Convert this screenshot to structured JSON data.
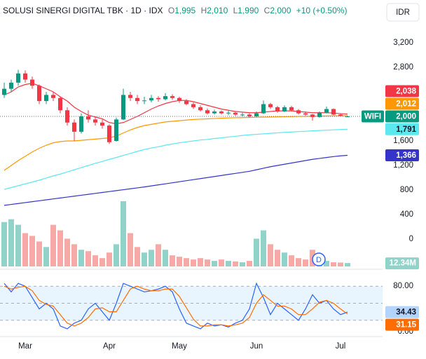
{
  "chart_data": [
    {
      "type": "candlestick",
      "title": "SOLUSI SINERGI DIGITAL TBK · 1D · IDX",
      "legend": {
        "open_key": "O",
        "open": "1,995",
        "high_key": "H",
        "high": "2,010",
        "low_key": "L",
        "low": "1,990",
        "close_key": "C",
        "close": "2,000",
        "change": "+10 (+0.50%)"
      },
      "currency": "IDR",
      "symbol": "WIFI",
      "last_label": "2,000",
      "up_color": "#089981",
      "down_color": "#f23645",
      "categories": [
        null,
        null,
        null,
        "Mar",
        null,
        null,
        null,
        null,
        null,
        null,
        null,
        null,
        null,
        null,
        null,
        "Apr",
        null,
        null,
        null,
        null,
        null,
        null,
        null,
        null,
        null,
        "May",
        null,
        null,
        null,
        null,
        null,
        null,
        null,
        null,
        null,
        null,
        "Jun",
        null,
        null,
        null,
        null,
        null,
        null,
        null,
        null,
        null,
        null,
        null,
        "Jul",
        null
      ],
      "ohlc": [
        [
          2350,
          2550,
          2300,
          2450
        ],
        [
          2450,
          2600,
          2400,
          2550
        ],
        [
          2550,
          2760,
          2500,
          2700
        ],
        [
          2700,
          2750,
          2550,
          2600
        ],
        [
          2600,
          2650,
          2450,
          2500
        ],
        [
          2500,
          2520,
          2200,
          2250
        ],
        [
          2250,
          2400,
          2200,
          2350
        ],
        [
          2350,
          2400,
          2250,
          2300
        ],
        [
          2300,
          2320,
          2050,
          2100
        ],
        [
          2100,
          2150,
          1850,
          1900
        ],
        [
          1900,
          1950,
          1600,
          1750
        ],
        [
          1750,
          2050,
          1720,
          2000
        ],
        [
          2000,
          2100,
          1900,
          1950
        ],
        [
          1950,
          2000,
          1850,
          1900
        ],
        [
          1900,
          1950,
          1800,
          1850
        ],
        [
          1850,
          1870,
          1550,
          1580
        ],
        [
          1600,
          1980,
          1590,
          1950
        ],
        [
          1950,
          2450,
          1940,
          2350
        ],
        [
          2350,
          2400,
          2250,
          2300
        ],
        [
          2300,
          2350,
          2200,
          2250
        ],
        [
          2250,
          2320,
          2200,
          2260
        ],
        [
          2260,
          2350,
          2230,
          2300
        ],
        [
          2300,
          2330,
          2240,
          2280
        ],
        [
          2280,
          2380,
          2260,
          2330
        ],
        [
          2330,
          2360,
          2270,
          2300
        ],
        [
          2300,
          2320,
          2220,
          2250
        ],
        [
          2250,
          2280,
          2180,
          2200
        ],
        [
          2200,
          2230,
          2120,
          2150
        ],
        [
          2150,
          2180,
          2080,
          2100
        ],
        [
          2100,
          2130,
          2030,
          2050
        ],
        [
          2050,
          2110,
          2030,
          2080
        ],
        [
          2080,
          2100,
          2030,
          2050
        ],
        [
          2050,
          2090,
          2020,
          2060
        ],
        [
          2060,
          2080,
          2010,
          2030
        ],
        [
          2030,
          2060,
          2000,
          2030
        ],
        [
          2030,
          2050,
          1980,
          2000
        ],
        [
          2000,
          2080,
          1990,
          2050
        ],
        [
          2050,
          2260,
          2040,
          2200
        ],
        [
          2200,
          2220,
          2120,
          2150
        ],
        [
          2150,
          2170,
          2060,
          2080
        ],
        [
          2080,
          2180,
          2070,
          2150
        ],
        [
          2150,
          2170,
          2080,
          2100
        ],
        [
          2100,
          2120,
          2030,
          2050
        ],
        [
          2050,
          2080,
          2010,
          2030
        ],
        [
          2030,
          2040,
          1930,
          1990
        ],
        [
          1990,
          2080,
          1980,
          2060
        ],
        [
          2060,
          2160,
          2050,
          2120
        ],
        [
          2120,
          2130,
          2020,
          2030
        ],
        [
          2030,
          2050,
          2000,
          2010
        ],
        [
          1995,
          2010,
          1990,
          2000
        ]
      ],
      "series": [
        {
          "color": "#f23645",
          "value_label": "2,038",
          "values": [
            2350,
            2400,
            2480,
            2520,
            2540,
            2500,
            2450,
            2400,
            2320,
            2250,
            2150,
            2080,
            2020,
            1990,
            1960,
            1900,
            1880,
            1900,
            1950,
            2000,
            2060,
            2120,
            2170,
            2210,
            2240,
            2260,
            2260,
            2240,
            2210,
            2180,
            2150,
            2120,
            2100,
            2080,
            2070,
            2060,
            2060,
            2070,
            2080,
            2090,
            2090,
            2090,
            2080,
            2070,
            2060,
            2060,
            2060,
            2055,
            2045,
            2038
          ]
        },
        {
          "color": "#ff9800",
          "value_label": "2,012",
          "values": [
            1120,
            1200,
            1280,
            1350,
            1420,
            1480,
            1530,
            1570,
            1590,
            1600,
            1600,
            1610,
            1620,
            1630,
            1640,
            1650,
            1680,
            1730,
            1780,
            1820,
            1850,
            1870,
            1890,
            1910,
            1920,
            1930,
            1940,
            1950,
            1955,
            1960,
            1965,
            1970,
            1975,
            1978,
            1980,
            1982,
            1985,
            1988,
            1990,
            1992,
            1995,
            1997,
            1999,
            2001,
            2003,
            2005,
            2007,
            2009,
            2011,
            2012
          ]
        },
        {
          "color": "#5ce8ef",
          "value_label": "1,791",
          "values": [
            810,
            840,
            870,
            900,
            930,
            960,
            995,
            1030,
            1060,
            1095,
            1130,
            1165,
            1200,
            1235,
            1265,
            1300,
            1330,
            1365,
            1395,
            1430,
            1460,
            1485,
            1505,
            1530,
            1550,
            1570,
            1585,
            1600,
            1615,
            1625,
            1640,
            1650,
            1665,
            1675,
            1690,
            1700,
            1708,
            1716,
            1724,
            1732,
            1740,
            1746,
            1752,
            1758,
            1764,
            1770,
            1775,
            1781,
            1786,
            1791
          ]
        },
        {
          "color": "#3434c8",
          "value_label": "1,366",
          "values": [
            550,
            565,
            580,
            595,
            610,
            625,
            640,
            655,
            670,
            685,
            700,
            715,
            730,
            745,
            760,
            775,
            790,
            805,
            820,
            835,
            850,
            867,
            884,
            901,
            918,
            935,
            952,
            969,
            986,
            1003,
            1020,
            1037,
            1054,
            1071,
            1088,
            1105,
            1130,
            1155,
            1180,
            1200,
            1220,
            1240,
            1260,
            1280,
            1300,
            1315,
            1330,
            1345,
            1357,
            1366
          ]
        }
      ],
      "ylim": [
        0,
        3200
      ],
      "yticks": [
        {
          "value": 3200,
          "label": "3,200"
        },
        {
          "value": 2800,
          "label": "2,800"
        },
        {
          "value": 1600,
          "label": "1,600"
        },
        {
          "value": 1200,
          "label": "1,200"
        },
        800,
        400,
        0
      ]
    },
    {
      "type": "bar",
      "event_label": "D",
      "last_label": "12.34M",
      "up_color": "#92d3c9",
      "down_color": "#f7a9a7",
      "values": [
        160,
        170,
        150,
        120,
        110,
        90,
        70,
        150,
        130,
        100,
        80,
        60,
        55,
        40,
        30,
        50,
        80,
        235,
        120,
        70,
        50,
        60,
        80,
        60,
        40,
        35,
        30,
        25,
        30,
        25,
        20,
        25,
        20,
        18,
        15,
        20,
        100,
        130,
        80,
        60,
        50,
        40,
        30,
        25,
        60,
        25,
        20,
        15,
        14,
        12.34
      ],
      "ylim": [
        0,
        240
      ]
    },
    {
      "type": "line",
      "series": [
        {
          "color": "#2962ff",
          "value_label": "34.43",
          "values": [
            85,
            70,
            85,
            80,
            60,
            40,
            50,
            40,
            10,
            5,
            15,
            20,
            40,
            50,
            35,
            20,
            50,
            85,
            80,
            75,
            70,
            72,
            75,
            80,
            70,
            40,
            15,
            10,
            5,
            15,
            10,
            12,
            8,
            15,
            20,
            40,
            85,
            60,
            30,
            50,
            40,
            30,
            20,
            40,
            65,
            50,
            55,
            40,
            30,
            34.43
          ]
        },
        {
          "color": "#ff6d00",
          "value_label": "31.15",
          "values": [
            80,
            75,
            78,
            80,
            72,
            55,
            48,
            45,
            30,
            15,
            10,
            15,
            25,
            40,
            42,
            35,
            35,
            55,
            75,
            80,
            75,
            72,
            72,
            75,
            75,
            62,
            42,
            22,
            10,
            10,
            12,
            12,
            10,
            12,
            15,
            25,
            50,
            65,
            55,
            45,
            45,
            40,
            30,
            30,
            40,
            52,
            55,
            50,
            40,
            31.15
          ]
        }
      ],
      "bands": [
        20,
        50,
        80
      ],
      "ylim": [
        0,
        100
      ],
      "yticks": [
        {
          "value": 80,
          "label": "80.00"
        },
        {
          "value": 0,
          "label": "0.00"
        }
      ]
    }
  ]
}
